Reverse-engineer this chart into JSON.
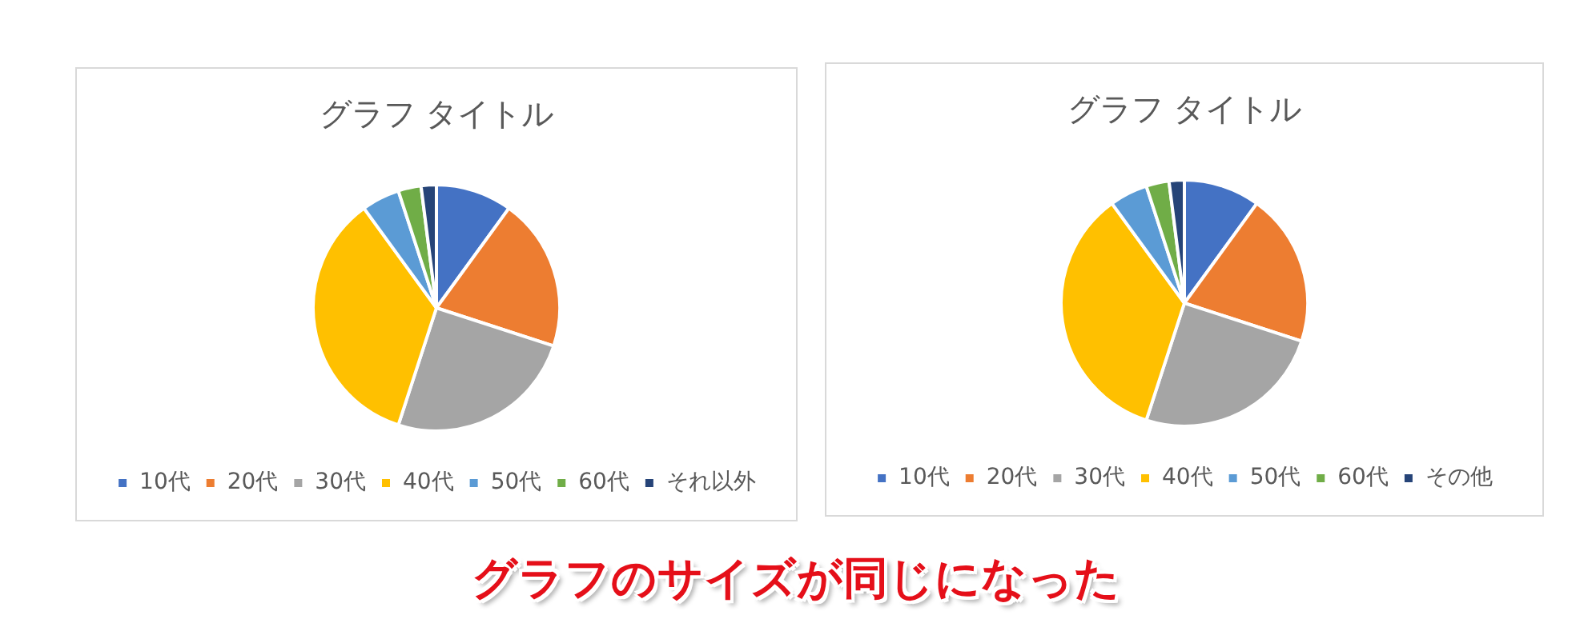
{
  "chart_data": [
    {
      "type": "pie",
      "title": "グラフ タイトル",
      "categories": [
        "10代",
        "20代",
        "30代",
        "40代",
        "50代",
        "60代",
        "それ以外"
      ],
      "values": [
        10,
        20,
        25,
        35,
        5,
        3,
        2
      ],
      "colors": [
        "#4472c4",
        "#ed7d31",
        "#a5a5a5",
        "#ffc000",
        "#5b9bd5",
        "#70ad47",
        "#264478"
      ],
      "legend": "bottom"
    },
    {
      "type": "pie",
      "title": "グラフ タイトル",
      "categories": [
        "10代",
        "20代",
        "30代",
        "40代",
        "50代",
        "60代",
        "その他"
      ],
      "values": [
        10,
        20,
        25,
        35,
        5,
        3,
        2
      ],
      "colors": [
        "#4472c4",
        "#ed7d31",
        "#a5a5a5",
        "#ffc000",
        "#5b9bd5",
        "#70ad47",
        "#264478"
      ],
      "legend": "bottom"
    },
    {
      "type": "other",
      "annotations": [
        "グラフのサイズが同じになった"
      ]
    }
  ]
}
